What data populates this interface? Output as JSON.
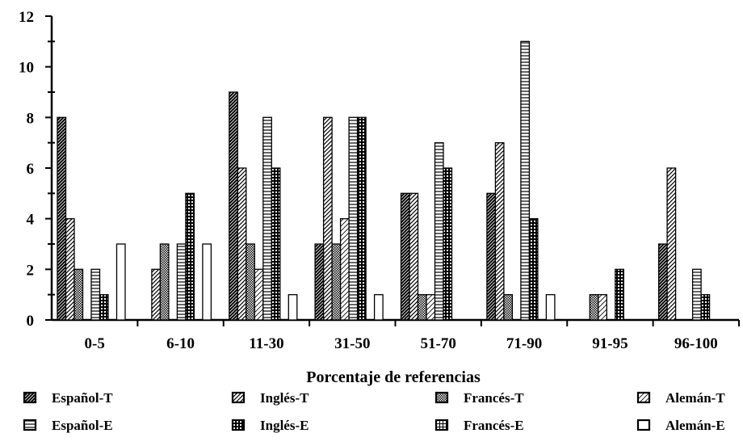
{
  "chart_data": {
    "type": "bar",
    "title": "",
    "xlabel": "Porcentaje de referencias",
    "ylabel": "",
    "ylim": [
      0,
      12
    ],
    "yticks": [
      0,
      2,
      4,
      6,
      8,
      10,
      12
    ],
    "grid": false,
    "legend_position": "bottom",
    "categories": [
      "0-5",
      "6-10",
      "11-30",
      "31-50",
      "51-70",
      "71-90",
      "91-95",
      "96-100"
    ],
    "series": [
      {
        "name": "Español-T",
        "values": [
          8,
          0,
          9,
          3,
          5,
          5,
          0,
          3
        ],
        "pattern": "dense-diagonal"
      },
      {
        "name": "Inglés-T",
        "values": [
          4,
          2,
          6,
          8,
          5,
          7,
          0,
          6
        ],
        "pattern": "diagonal"
      },
      {
        "name": "Francés-T",
        "values": [
          2,
          3,
          3,
          3,
          1,
          1,
          1,
          0
        ],
        "pattern": "dots"
      },
      {
        "name": "Alemán-T",
        "values": [
          0,
          0,
          2,
          4,
          1,
          0,
          1,
          0
        ],
        "pattern": "light-diagonal"
      },
      {
        "name": "Español-E",
        "values": [
          2,
          3,
          8,
          8,
          7,
          11,
          0,
          2
        ],
        "pattern": "horizontal"
      },
      {
        "name": "Inglés-E",
        "values": [
          1,
          5,
          6,
          8,
          6,
          4,
          2,
          1
        ],
        "pattern": "grid-dark"
      },
      {
        "name": "Francés-E",
        "values": [
          0,
          0,
          0,
          0,
          0,
          0,
          0,
          0
        ],
        "pattern": "grid-light"
      },
      {
        "name": "Alemán-E",
        "values": [
          3,
          3,
          1,
          1,
          0,
          1,
          0,
          0
        ],
        "pattern": "open"
      }
    ],
    "legend_rows": [
      [
        "Español-T",
        "Inglés-T",
        "Francés-T",
        "Alemán-T"
      ],
      [
        "Español-E",
        "Inglés-E",
        "Francés-E",
        "Alemán-E"
      ]
    ]
  }
}
